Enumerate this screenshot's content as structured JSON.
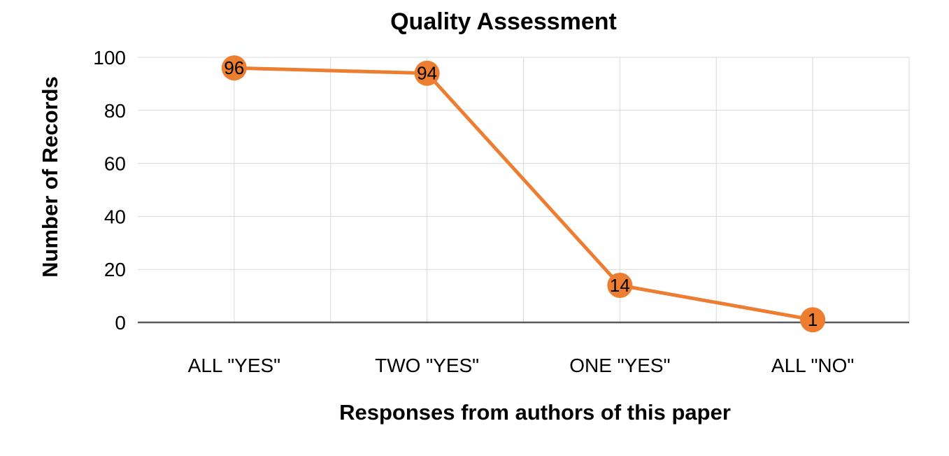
{
  "chart_data": {
    "type": "line",
    "title": "Quality Assessment",
    "xlabel": "Responses from authors of this paper",
    "ylabel": "Number of Records",
    "categories": [
      "ALL \"YES\"",
      "TWO \"YES\"",
      "ONE \"YES\"",
      "ALL \"NO\""
    ],
    "series": [
      {
        "values": [
          96,
          94,
          14,
          1
        ]
      }
    ],
    "ylim": [
      0,
      100
    ],
    "yticks": [
      0,
      20,
      40,
      60,
      80,
      100
    ],
    "data_labels": true,
    "grid": {
      "horizontal": true,
      "vertical": true
    },
    "legend": "none",
    "colors": {
      "line": "#ED7D31",
      "marker": "#ED7D31",
      "gridline": "#D9D9D9",
      "axis": "#595959"
    }
  }
}
